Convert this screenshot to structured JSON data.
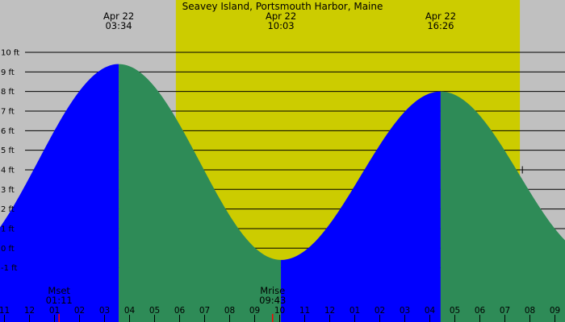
{
  "chart_data": {
    "type": "area",
    "title": "Seavey Island, Portsmouth Harbor, Maine",
    "ylim": [
      -1.5,
      10
    ],
    "y_unit": "ft",
    "y_ticks": [
      {
        "v": 10,
        "label": "10 ft"
      },
      {
        "v": 9,
        "label": "9 ft"
      },
      {
        "v": 8,
        "label": "8 ft"
      },
      {
        "v": 7,
        "label": "7 ft"
      },
      {
        "v": 6,
        "label": "6 ft"
      },
      {
        "v": 5,
        "label": "5 ft"
      },
      {
        "v": 4,
        "label": "4 ft"
      },
      {
        "v": 3,
        "label": "3 ft"
      },
      {
        "v": 2,
        "label": "2 ft"
      },
      {
        "v": 1,
        "label": "1 ft"
      },
      {
        "v": 0,
        "label": "0 ft"
      },
      {
        "v": -1,
        "label": "-1 ft"
      }
    ],
    "x_ticks": [
      {
        "h": -1,
        "label": "11"
      },
      {
        "h": 0,
        "label": "12"
      },
      {
        "h": 1,
        "label": "01"
      },
      {
        "h": 2,
        "label": "02"
      },
      {
        "h": 3,
        "label": "03"
      },
      {
        "h": 4,
        "label": "04"
      },
      {
        "h": 5,
        "label": "05"
      },
      {
        "h": 6,
        "label": "06"
      },
      {
        "h": 7,
        "label": "07"
      },
      {
        "h": 8,
        "label": "08"
      },
      {
        "h": 9,
        "label": "09"
      },
      {
        "h": 10,
        "label": "10"
      },
      {
        "h": 11,
        "label": "11"
      },
      {
        "h": 12,
        "label": "12"
      },
      {
        "h": 13,
        "label": "01"
      },
      {
        "h": 14,
        "label": "02"
      },
      {
        "h": 15,
        "label": "03"
      },
      {
        "h": 16,
        "label": "04"
      },
      {
        "h": 17,
        "label": "05"
      },
      {
        "h": 18,
        "label": "06"
      },
      {
        "h": 19,
        "label": "07"
      },
      {
        "h": 20,
        "label": "08"
      },
      {
        "h": 21,
        "label": "09"
      }
    ],
    "x_range_hours": [
      -1.2,
      21.6
    ],
    "daylight_hours": [
      5.85,
      19.6
    ],
    "tide_events": [
      {
        "date": "Apr 22",
        "time": "03:34",
        "h": 3.567,
        "ft": 9.4,
        "type": "high"
      },
      {
        "date": "Apr 22",
        "time": "10:03",
        "h": 10.05,
        "ft": -0.6,
        "type": "low"
      },
      {
        "date": "Apr 22",
        "time": "16:26",
        "h": 16.433,
        "ft": 8.0,
        "type": "high"
      }
    ],
    "curve_ends": {
      "start": {
        "h": -1.2,
        "ft": 2.2
      },
      "end": {
        "h": 21.6,
        "ft": 1.0
      }
    },
    "moon_events": [
      {
        "name": "Mset",
        "time": "01:11",
        "h": 1.183
      },
      {
        "name": "Mrise",
        "time": "09:43",
        "h": 9.717
      }
    ],
    "current_marker": {
      "h": 19.7,
      "ft": 4.0
    },
    "colors": {
      "night": "#c0c0c0",
      "day": "#cccc00",
      "rising": "#0000ff",
      "falling": "#2e8b57",
      "grid": "#000000",
      "moon_marker": "#ff0000"
    }
  }
}
